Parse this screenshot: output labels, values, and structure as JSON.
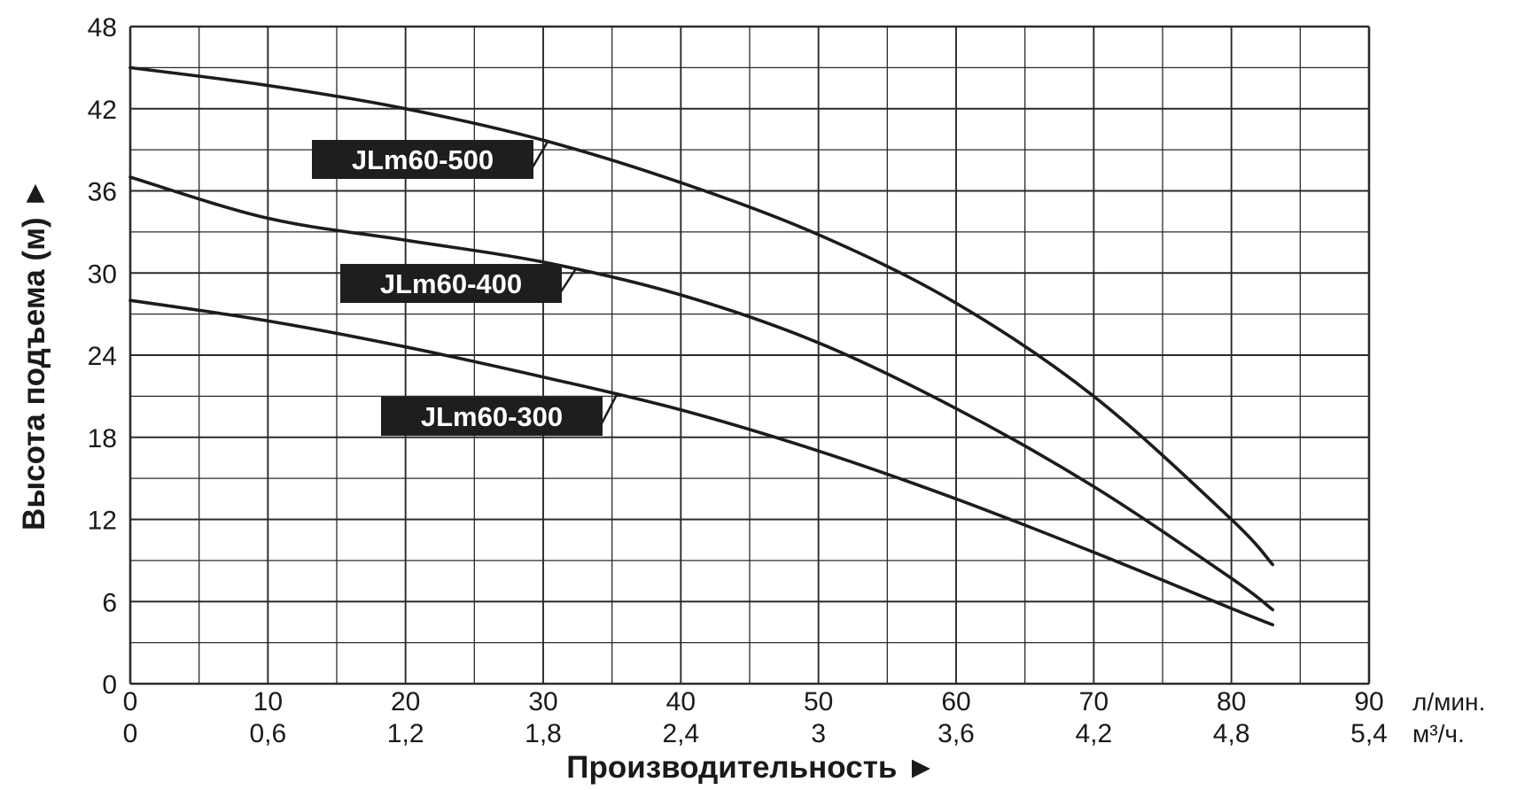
{
  "chart_data": {
    "type": "line",
    "title": "",
    "xlabel": "Производительность ►",
    "ylabel": "Высота подъема (м) ►",
    "x_unit_primary": "л/мин.",
    "x_unit_secondary": "м³/ч.",
    "xlim": [
      0,
      90
    ],
    "ylim": [
      0,
      48
    ],
    "x_ticks": [
      "0",
      "10",
      "20",
      "30",
      "40",
      "50",
      "60",
      "70",
      "80",
      "90"
    ],
    "x_ticks_secondary": [
      "0",
      "0,6",
      "1,2",
      "1,8",
      "2,4",
      "3",
      "3,6",
      "4,2",
      "4,8",
      "5,4"
    ],
    "y_ticks": [
      "0",
      "6",
      "12",
      "18",
      "24",
      "30",
      "36",
      "42",
      "48"
    ],
    "grid": true,
    "legend": "inline labels",
    "series": [
      {
        "name": "JLm60-500",
        "x": [
          0,
          10,
          20,
          30,
          40,
          50,
          60,
          70,
          80,
          83
        ],
        "y": [
          45,
          43.7,
          42,
          39.7,
          36.6,
          32.8,
          27.8,
          21,
          12,
          8.7
        ]
      },
      {
        "name": "JLm60-400",
        "x": [
          0,
          10,
          20,
          30,
          40,
          50,
          60,
          70,
          80,
          83
        ],
        "y": [
          37,
          34,
          32.4,
          30.8,
          28.4,
          24.9,
          20.1,
          14.4,
          7.7,
          5.4
        ]
      },
      {
        "name": "JLm60-300",
        "x": [
          0,
          10,
          20,
          30,
          40,
          50,
          60,
          70,
          80,
          83
        ],
        "y": [
          28,
          26.5,
          24.6,
          22.4,
          20,
          17,
          13.5,
          9.6,
          5.5,
          4.3
        ]
      }
    ]
  },
  "styles": {
    "line_color": "#1c1c1c",
    "grid_color": "#2a2a2a",
    "label_bg": "#1e1e1e",
    "label_text": "#ffffff"
  }
}
